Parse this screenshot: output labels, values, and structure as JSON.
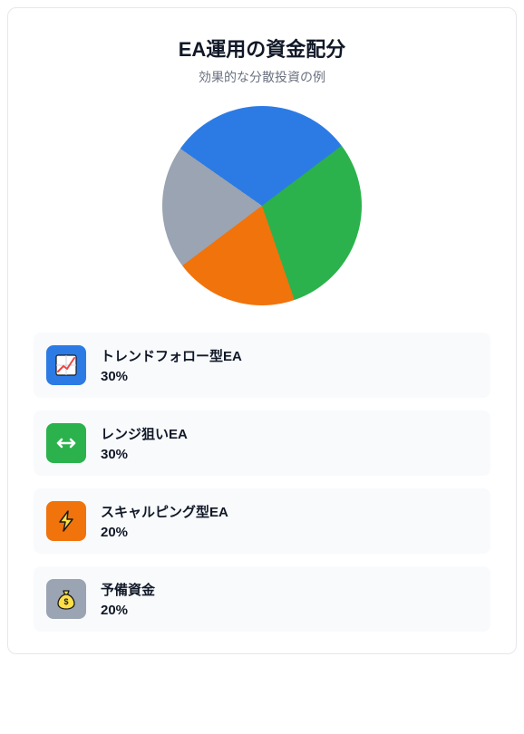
{
  "card": {
    "title": "EA運用の資金配分",
    "subtitle": "効果的な分散投資の例",
    "background_color": "#ffffff",
    "border_color": "#e5e7eb",
    "border_radius": 10,
    "title_fontsize": 22,
    "title_color": "#111827",
    "subtitle_fontsize": 14,
    "subtitle_color": "#6b7280"
  },
  "pie_chart": {
    "type": "pie",
    "diameter": 220,
    "start_angle_deg": -55,
    "slices": [
      {
        "label": "トレンドフォロー型EA",
        "value": 30,
        "percent": "30%",
        "color": "#2c7be5"
      },
      {
        "label": "レンジ狙いEA",
        "value": 30,
        "percent": "30%",
        "color": "#2bb24c"
      },
      {
        "label": "スキャルピング型EA",
        "value": 20,
        "percent": "20%",
        "color": "#f1730b"
      },
      {
        "label": "予備資金",
        "value": 20,
        "percent": "20%",
        "color": "#9aa4b2"
      }
    ]
  },
  "legend": {
    "item_background": "#f8fafc",
    "item_radius": 8,
    "icon_size": 44,
    "icon_radius": 8,
    "label_fontsize": 15,
    "label_fontweight": 700,
    "label_color": "#111827",
    "value_fontsize": 15,
    "value_fontweight": 700,
    "value_color": "#111827",
    "items": [
      {
        "label": "トレンドフォロー型EA",
        "value": "30%",
        "icon": "trend-chart-icon",
        "icon_bg": "#2c7be5"
      },
      {
        "label": "レンジ狙いEA",
        "value": "30%",
        "icon": "horizontal-arrows-icon",
        "icon_bg": "#2bb24c"
      },
      {
        "label": "スキャルピング型EA",
        "value": "20%",
        "icon": "lightning-icon",
        "icon_bg": "#f1730b"
      },
      {
        "label": "予備資金",
        "value": "20%",
        "icon": "money-bag-icon",
        "icon_bg": "#9aa4b2"
      }
    ]
  }
}
